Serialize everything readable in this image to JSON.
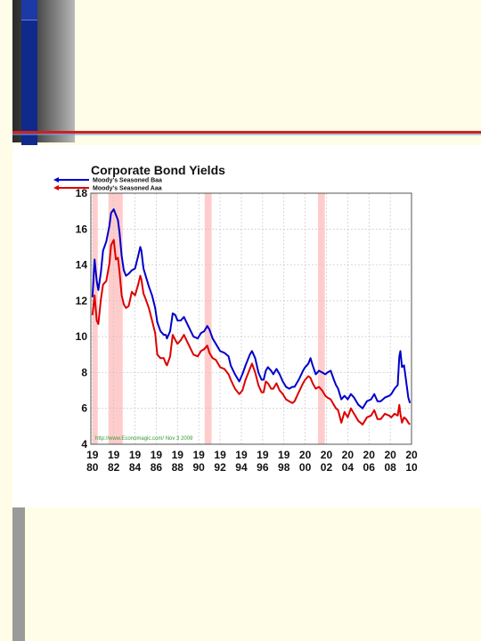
{
  "chart_data": {
    "type": "line",
    "title": "Corporate Bond Yields",
    "series": [
      {
        "name": "Moody's Seasoned Baa",
        "color": "#0000cc",
        "points": [
          [
            1980.0,
            12.2
          ],
          [
            1980.2,
            14.3
          ],
          [
            1980.4,
            13.1
          ],
          [
            1980.55,
            12.6
          ],
          [
            1980.8,
            13.6
          ],
          [
            1981.0,
            14.8
          ],
          [
            1981.3,
            15.3
          ],
          [
            1981.6,
            16.2
          ],
          [
            1981.75,
            16.9
          ],
          [
            1982.0,
            17.1
          ],
          [
            1982.2,
            16.8
          ],
          [
            1982.4,
            16.5
          ],
          [
            1982.55,
            15.8
          ],
          [
            1982.75,
            14.5
          ],
          [
            1982.95,
            13.7
          ],
          [
            1983.15,
            13.4
          ],
          [
            1983.4,
            13.5
          ],
          [
            1983.7,
            13.7
          ],
          [
            1984.0,
            13.8
          ],
          [
            1984.3,
            14.5
          ],
          [
            1984.5,
            15.0
          ],
          [
            1984.6,
            14.8
          ],
          [
            1984.8,
            13.8
          ],
          [
            1985.0,
            13.4
          ],
          [
            1985.3,
            12.8
          ],
          [
            1985.6,
            12.3
          ],
          [
            1985.9,
            11.6
          ],
          [
            1986.1,
            10.8
          ],
          [
            1986.4,
            10.3
          ],
          [
            1986.7,
            10.1
          ],
          [
            1986.9,
            10.1
          ],
          [
            1987.0,
            9.9
          ],
          [
            1987.3,
            10.3
          ],
          [
            1987.55,
            11.3
          ],
          [
            1987.8,
            11.2
          ],
          [
            1988.0,
            10.9
          ],
          [
            1988.3,
            10.9
          ],
          [
            1988.6,
            11.1
          ],
          [
            1989.0,
            10.6
          ],
          [
            1989.5,
            10.0
          ],
          [
            1989.9,
            9.9
          ],
          [
            1990.2,
            10.2
          ],
          [
            1990.5,
            10.3
          ],
          [
            1990.8,
            10.6
          ],
          [
            1991.0,
            10.4
          ],
          [
            1991.3,
            9.9
          ],
          [
            1991.6,
            9.6
          ],
          [
            1992.0,
            9.2
          ],
          [
            1992.4,
            9.1
          ],
          [
            1992.8,
            8.9
          ],
          [
            1993.0,
            8.4
          ],
          [
            1993.4,
            7.9
          ],
          [
            1993.8,
            7.5
          ],
          [
            1994.1,
            7.9
          ],
          [
            1994.4,
            8.4
          ],
          [
            1994.8,
            9.0
          ],
          [
            1995.0,
            9.2
          ],
          [
            1995.3,
            8.8
          ],
          [
            1995.6,
            8.0
          ],
          [
            1995.9,
            7.6
          ],
          [
            1996.1,
            7.6
          ],
          [
            1996.3,
            8.1
          ],
          [
            1996.5,
            8.3
          ],
          [
            1996.8,
            8.1
          ],
          [
            1997.0,
            7.9
          ],
          [
            1997.3,
            8.2
          ],
          [
            1997.6,
            7.9
          ],
          [
            1997.9,
            7.5
          ],
          [
            1998.2,
            7.2
          ],
          [
            1998.5,
            7.1
          ],
          [
            1998.8,
            7.2
          ],
          [
            1999.0,
            7.2
          ],
          [
            1999.4,
            7.6
          ],
          [
            1999.8,
            8.1
          ],
          [
            2000.0,
            8.3
          ],
          [
            2000.3,
            8.5
          ],
          [
            2000.5,
            8.8
          ],
          [
            2000.7,
            8.4
          ],
          [
            2001.0,
            7.9
          ],
          [
            2001.3,
            8.1
          ],
          [
            2001.6,
            8.0
          ],
          [
            2001.9,
            7.9
          ],
          [
            2002.1,
            8.0
          ],
          [
            2002.4,
            8.1
          ],
          [
            2002.7,
            7.6
          ],
          [
            2002.9,
            7.3
          ],
          [
            2003.1,
            7.1
          ],
          [
            2003.4,
            6.5
          ],
          [
            2003.7,
            6.7
          ],
          [
            2004.0,
            6.5
          ],
          [
            2004.3,
            6.8
          ],
          [
            2004.6,
            6.6
          ],
          [
            2005.0,
            6.2
          ],
          [
            2005.4,
            6.0
          ],
          [
            2005.8,
            6.4
          ],
          [
            2006.2,
            6.5
          ],
          [
            2006.5,
            6.8
          ],
          [
            2006.8,
            6.4
          ],
          [
            2007.1,
            6.4
          ],
          [
            2007.5,
            6.6
          ],
          [
            2007.9,
            6.7
          ],
          [
            2008.1,
            6.8
          ],
          [
            2008.4,
            7.1
          ],
          [
            2008.7,
            7.3
          ],
          [
            2008.85,
            8.9
          ],
          [
            2008.95,
            9.2
          ],
          [
            2009.1,
            8.3
          ],
          [
            2009.3,
            8.4
          ],
          [
            2009.5,
            7.5
          ],
          [
            2009.7,
            6.6
          ],
          [
            2009.85,
            6.3
          ]
        ]
      },
      {
        "name": "Moody's Seasoned Aaa",
        "color": "#dd0000",
        "points": [
          [
            1980.0,
            11.2
          ],
          [
            1980.2,
            12.3
          ],
          [
            1980.4,
            10.9
          ],
          [
            1980.55,
            10.7
          ],
          [
            1980.8,
            12.1
          ],
          [
            1981.0,
            12.9
          ],
          [
            1981.3,
            13.1
          ],
          [
            1981.6,
            14.1
          ],
          [
            1981.75,
            15.1
          ],
          [
            1982.0,
            15.4
          ],
          [
            1982.2,
            14.3
          ],
          [
            1982.4,
            14.4
          ],
          [
            1982.55,
            13.6
          ],
          [
            1982.75,
            12.3
          ],
          [
            1982.95,
            11.8
          ],
          [
            1983.15,
            11.6
          ],
          [
            1983.4,
            11.7
          ],
          [
            1983.7,
            12.5
          ],
          [
            1984.0,
            12.3
          ],
          [
            1984.3,
            12.9
          ],
          [
            1984.5,
            13.4
          ],
          [
            1984.6,
            13.2
          ],
          [
            1984.8,
            12.4
          ],
          [
            1985.0,
            12.1
          ],
          [
            1985.3,
            11.6
          ],
          [
            1985.6,
            10.9
          ],
          [
            1985.9,
            10.2
          ],
          [
            1986.1,
            9.0
          ],
          [
            1986.4,
            8.8
          ],
          [
            1986.7,
            8.8
          ],
          [
            1986.9,
            8.5
          ],
          [
            1987.0,
            8.4
          ],
          [
            1987.3,
            8.9
          ],
          [
            1987.55,
            10.1
          ],
          [
            1987.8,
            9.8
          ],
          [
            1988.0,
            9.6
          ],
          [
            1988.3,
            9.8
          ],
          [
            1988.6,
            10.1
          ],
          [
            1989.0,
            9.6
          ],
          [
            1989.5,
            9.0
          ],
          [
            1989.9,
            8.9
          ],
          [
            1990.2,
            9.2
          ],
          [
            1990.5,
            9.3
          ],
          [
            1990.8,
            9.5
          ],
          [
            1991.0,
            9.1
          ],
          [
            1991.3,
            8.8
          ],
          [
            1991.6,
            8.7
          ],
          [
            1992.0,
            8.3
          ],
          [
            1992.4,
            8.2
          ],
          [
            1992.8,
            7.9
          ],
          [
            1993.0,
            7.6
          ],
          [
            1993.4,
            7.1
          ],
          [
            1993.8,
            6.8
          ],
          [
            1994.1,
            7.0
          ],
          [
            1994.4,
            7.6
          ],
          [
            1994.8,
            8.2
          ],
          [
            1995.0,
            8.5
          ],
          [
            1995.3,
            8.0
          ],
          [
            1995.6,
            7.3
          ],
          [
            1995.9,
            6.9
          ],
          [
            1996.1,
            6.9
          ],
          [
            1996.3,
            7.5
          ],
          [
            1996.5,
            7.4
          ],
          [
            1996.8,
            7.1
          ],
          [
            1997.0,
            7.1
          ],
          [
            1997.3,
            7.4
          ],
          [
            1997.6,
            7.0
          ],
          [
            1997.9,
            6.8
          ],
          [
            1998.2,
            6.5
          ],
          [
            1998.5,
            6.4
          ],
          [
            1998.8,
            6.3
          ],
          [
            1999.0,
            6.4
          ],
          [
            1999.4,
            6.9
          ],
          [
            1999.8,
            7.4
          ],
          [
            2000.0,
            7.6
          ],
          [
            2000.3,
            7.8
          ],
          [
            2000.5,
            7.7
          ],
          [
            2000.7,
            7.4
          ],
          [
            2001.0,
            7.1
          ],
          [
            2001.3,
            7.2
          ],
          [
            2001.6,
            7.0
          ],
          [
            2001.9,
            6.7
          ],
          [
            2002.1,
            6.6
          ],
          [
            2002.4,
            6.5
          ],
          [
            2002.7,
            6.2
          ],
          [
            2002.9,
            6.0
          ],
          [
            2003.1,
            5.9
          ],
          [
            2003.4,
            5.2
          ],
          [
            2003.7,
            5.8
          ],
          [
            2004.0,
            5.5
          ],
          [
            2004.3,
            6.0
          ],
          [
            2004.6,
            5.7
          ],
          [
            2005.0,
            5.3
          ],
          [
            2005.4,
            5.1
          ],
          [
            2005.8,
            5.5
          ],
          [
            2006.2,
            5.6
          ],
          [
            2006.5,
            5.9
          ],
          [
            2006.8,
            5.4
          ],
          [
            2007.1,
            5.4
          ],
          [
            2007.5,
            5.7
          ],
          [
            2007.9,
            5.6
          ],
          [
            2008.1,
            5.5
          ],
          [
            2008.4,
            5.7
          ],
          [
            2008.7,
            5.6
          ],
          [
            2008.85,
            6.2
          ],
          [
            2008.95,
            5.7
          ],
          [
            2009.1,
            5.2
          ],
          [
            2009.3,
            5.5
          ],
          [
            2009.5,
            5.4
          ],
          [
            2009.7,
            5.2
          ],
          [
            2009.85,
            5.1
          ]
        ]
      }
    ],
    "xlim": [
      1979.85,
      2010.0
    ],
    "ylim": [
      4,
      18
    ],
    "yticks": [
      4,
      6,
      8,
      10,
      12,
      14,
      16,
      18
    ],
    "xticks": [
      {
        "x": 1980,
        "top": "19",
        "bottom": "80"
      },
      {
        "x": 1982,
        "top": "19",
        "bottom": "82"
      },
      {
        "x": 1984,
        "top": "19",
        "bottom": "84"
      },
      {
        "x": 1986,
        "top": "19",
        "bottom": "86"
      },
      {
        "x": 1988,
        "top": "19",
        "bottom": "88"
      },
      {
        "x": 1990,
        "top": "19",
        "bottom": "90"
      },
      {
        "x": 1992,
        "top": "19",
        "bottom": "92"
      },
      {
        "x": 1994,
        "top": "19",
        "bottom": "94"
      },
      {
        "x": 1996,
        "top": "19",
        "bottom": "96"
      },
      {
        "x": 1998,
        "top": "19",
        "bottom": "98"
      },
      {
        "x": 2000,
        "top": "20",
        "bottom": "00"
      },
      {
        "x": 2002,
        "top": "20",
        "bottom": "02"
      },
      {
        "x": 2004,
        "top": "20",
        "bottom": "04"
      },
      {
        "x": 2006,
        "top": "20",
        "bottom": "06"
      },
      {
        "x": 2008,
        "top": "20",
        "bottom": "08"
      },
      {
        "x": 2010,
        "top": "20",
        "bottom": "10"
      }
    ],
    "recessions": [
      [
        1980.0,
        1980.5
      ],
      [
        1981.5,
        1982.85
      ],
      [
        1990.55,
        1991.2
      ],
      [
        2001.2,
        2001.85
      ]
    ],
    "recession_color": "#ffcccc",
    "grid": true,
    "legend_position": "top-left",
    "source_note": "http://www.Economagic.com/  Nov 3 2009",
    "source_note_color": "#339933"
  }
}
